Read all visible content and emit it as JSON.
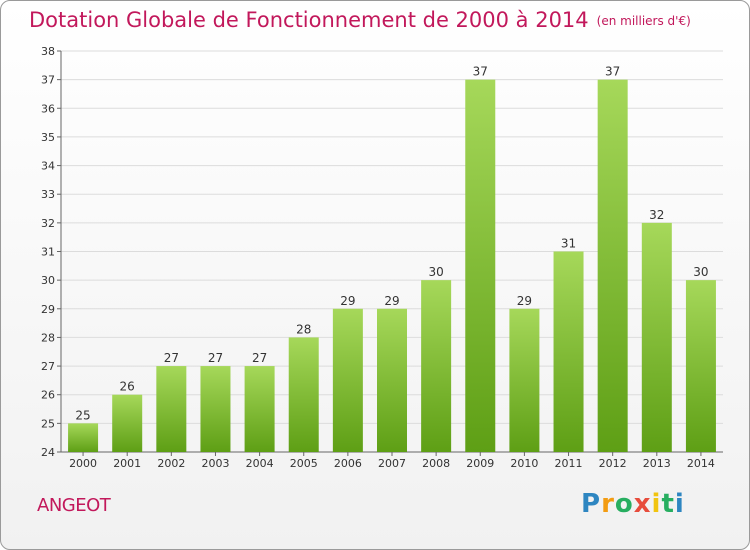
{
  "header": {
    "title": "Dotation Globale de Fonctionnement de 2000 à 2014",
    "subtitle": "(en milliers d'€)"
  },
  "footer": {
    "commune": "ANGEOT",
    "logo": {
      "letters": [
        "P",
        "r",
        "o",
        "x",
        "i",
        "t",
        "i"
      ]
    },
    "logo_colors": [
      "#2e86c1",
      "#f39c12",
      "#27ae60",
      "#e74c3c",
      "#f1c40f",
      "#27ae60",
      "#2e86c1"
    ]
  },
  "colors": {
    "title": "#c2185b",
    "bar_light": "#a6d85a",
    "bar_dark": "#5e9f15",
    "grid": "#dcdcdc",
    "axis": "#666666"
  },
  "chart_data": {
    "type": "bar",
    "title": "Dotation Globale de Fonctionnement de 2000 à 2014",
    "subtitle": "(en milliers d'€)",
    "xlabel": "",
    "ylabel": "",
    "ylim": [
      24,
      38
    ],
    "yticks": [
      24,
      25,
      26,
      27,
      28,
      29,
      30,
      31,
      32,
      33,
      34,
      35,
      36,
      37,
      38
    ],
    "grid": true,
    "categories": [
      "2000",
      "2001",
      "2002",
      "2003",
      "2004",
      "2005",
      "2006",
      "2007",
      "2008",
      "2009",
      "2010",
      "2011",
      "2012",
      "2013",
      "2014"
    ],
    "values": [
      25,
      26,
      27,
      27,
      27,
      28,
      29,
      29,
      30,
      37,
      29,
      31,
      37,
      32,
      30
    ]
  }
}
